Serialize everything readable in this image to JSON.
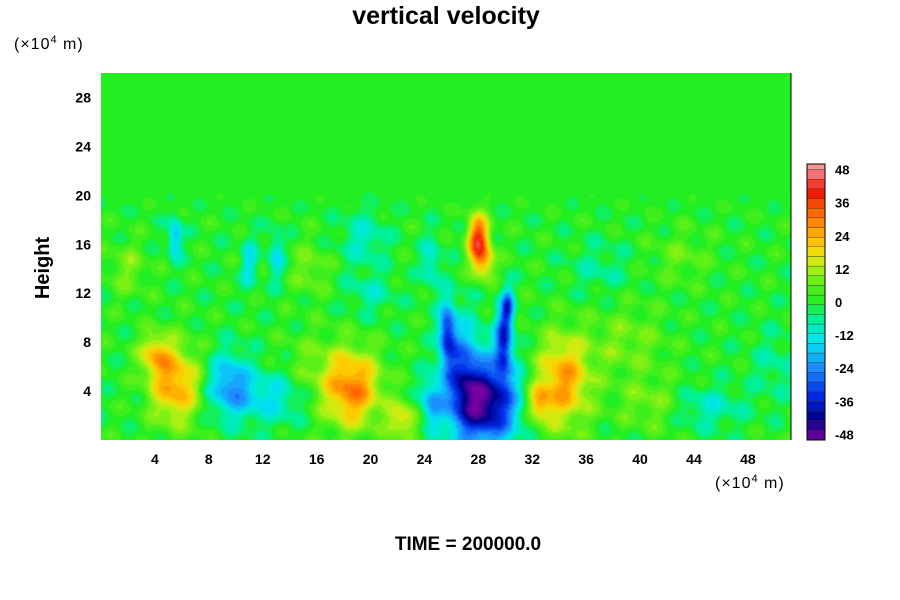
{
  "chart_data": {
    "type": "heatmap",
    "title": "vertical velocity",
    "ylabel": "Height",
    "xlabel": "",
    "x_unit": {
      "prefix": "(×10",
      "exp": "4",
      "suffix": " m)"
    },
    "y_unit": {
      "prefix": "(×10",
      "exp": "4",
      "suffix": " m)"
    },
    "xlim": [
      0,
      51.2
    ],
    "ylim": [
      0,
      30
    ],
    "x_ticks": [
      "4",
      "8",
      "12",
      "16",
      "20",
      "24",
      "28",
      "32",
      "36",
      "40",
      "44",
      "48"
    ],
    "y_ticks": [
      "4",
      "8",
      "12",
      "16",
      "20",
      "24",
      "28"
    ],
    "colorbar": {
      "range": [
        -50,
        50
      ],
      "ticks": [
        "48",
        "36",
        "24",
        "12",
        "0",
        "-12",
        "-24",
        "-36",
        "-48"
      ],
      "placement": "right"
    },
    "features": [
      {
        "x": 5.5,
        "y": 4.5,
        "value": 26,
        "sx": 1.3,
        "sy": 2.2
      },
      {
        "x": 4.0,
        "y": 7.0,
        "value": 18,
        "sx": 0.8,
        "sy": 1.2
      },
      {
        "x": 18.6,
        "y": 4.2,
        "value": 30,
        "sx": 1.5,
        "sy": 2.2
      },
      {
        "x": 22.4,
        "y": 1.6,
        "value": 18,
        "sx": 0.8,
        "sy": 1.0
      },
      {
        "x": 34.3,
        "y": 4.8,
        "value": 26,
        "sx": 1.4,
        "sy": 2.6
      },
      {
        "x": 32.5,
        "y": 3.0,
        "value": 20,
        "sx": 0.6,
        "sy": 1.0
      },
      {
        "x": 40.8,
        "y": 3.0,
        "value": 8,
        "sx": 1.8,
        "sy": 1.5
      },
      {
        "x": 28.0,
        "y": 16.5,
        "value": 38,
        "sx": 0.55,
        "sy": 1.3
      },
      {
        "x": 28.4,
        "y": 14.5,
        "value": 20,
        "sx": 0.6,
        "sy": 1.0
      },
      {
        "x": 9.5,
        "y": 4.5,
        "value": -22,
        "sx": 1.1,
        "sy": 1.8
      },
      {
        "x": 12.5,
        "y": 3.5,
        "value": -14,
        "sx": 1.8,
        "sy": 1.5
      },
      {
        "x": 28.8,
        "y": 3.0,
        "value": -44,
        "sx": 1.5,
        "sy": 2.4
      },
      {
        "x": 26.8,
        "y": 4.8,
        "value": -28,
        "sx": 1.0,
        "sy": 3.2
      },
      {
        "x": 25.7,
        "y": 8.8,
        "value": -30,
        "sx": 0.45,
        "sy": 1.8
      },
      {
        "x": 29.9,
        "y": 8.2,
        "value": -34,
        "sx": 0.45,
        "sy": 2.0
      },
      {
        "x": 30.2,
        "y": 11.0,
        "value": -24,
        "sx": 0.3,
        "sy": 1.0
      },
      {
        "x": 24.5,
        "y": 3.0,
        "value": -20,
        "sx": 0.6,
        "sy": 1.5
      },
      {
        "x": 45.0,
        "y": 2.7,
        "value": -10,
        "sx": 1.8,
        "sy": 1.2
      },
      {
        "x": 11.0,
        "y": 14.5,
        "value": -14,
        "sx": 0.4,
        "sy": 1.4
      },
      {
        "x": 13.0,
        "y": 15.0,
        "value": -14,
        "sx": 0.4,
        "sy": 1.4
      },
      {
        "x": 5.5,
        "y": 16.5,
        "value": -20,
        "sx": 0.35,
        "sy": 1.2
      },
      {
        "x": 19.5,
        "y": 16.5,
        "value": -10,
        "sx": 1.2,
        "sy": 1.5
      },
      {
        "x": 24.5,
        "y": 14.5,
        "value": -12,
        "sx": 0.5,
        "sy": 1.5
      },
      {
        "x": 20.0,
        "y": 12.0,
        "value": -8,
        "sx": 1.2,
        "sy": 1.2
      },
      {
        "x": 15.5,
        "y": 14.0,
        "value": 8,
        "sx": 1.0,
        "sy": 1.5
      },
      {
        "x": 2.0,
        "y": 14.0,
        "value": 8,
        "sx": 1.0,
        "sy": 1.5
      },
      {
        "x": 37.0,
        "y": 14.0,
        "value": -6,
        "sx": 1.5,
        "sy": 1.5
      },
      {
        "x": 43.0,
        "y": 15.0,
        "value": 6,
        "sx": 1.5,
        "sy": 1.5
      },
      {
        "x": 50.0,
        "y": 6.0,
        "value": -6,
        "sx": 1.2,
        "sy": 2.0
      },
      {
        "x": 39.0,
        "y": 8.0,
        "value": 8,
        "sx": 2.0,
        "sy": 2.0
      },
      {
        "x": 15.5,
        "y": 6.0,
        "value": 6,
        "sx": 1.5,
        "sy": 2.0
      }
    ]
  },
  "footer": {
    "time_label": "TIME = 200000.0"
  }
}
